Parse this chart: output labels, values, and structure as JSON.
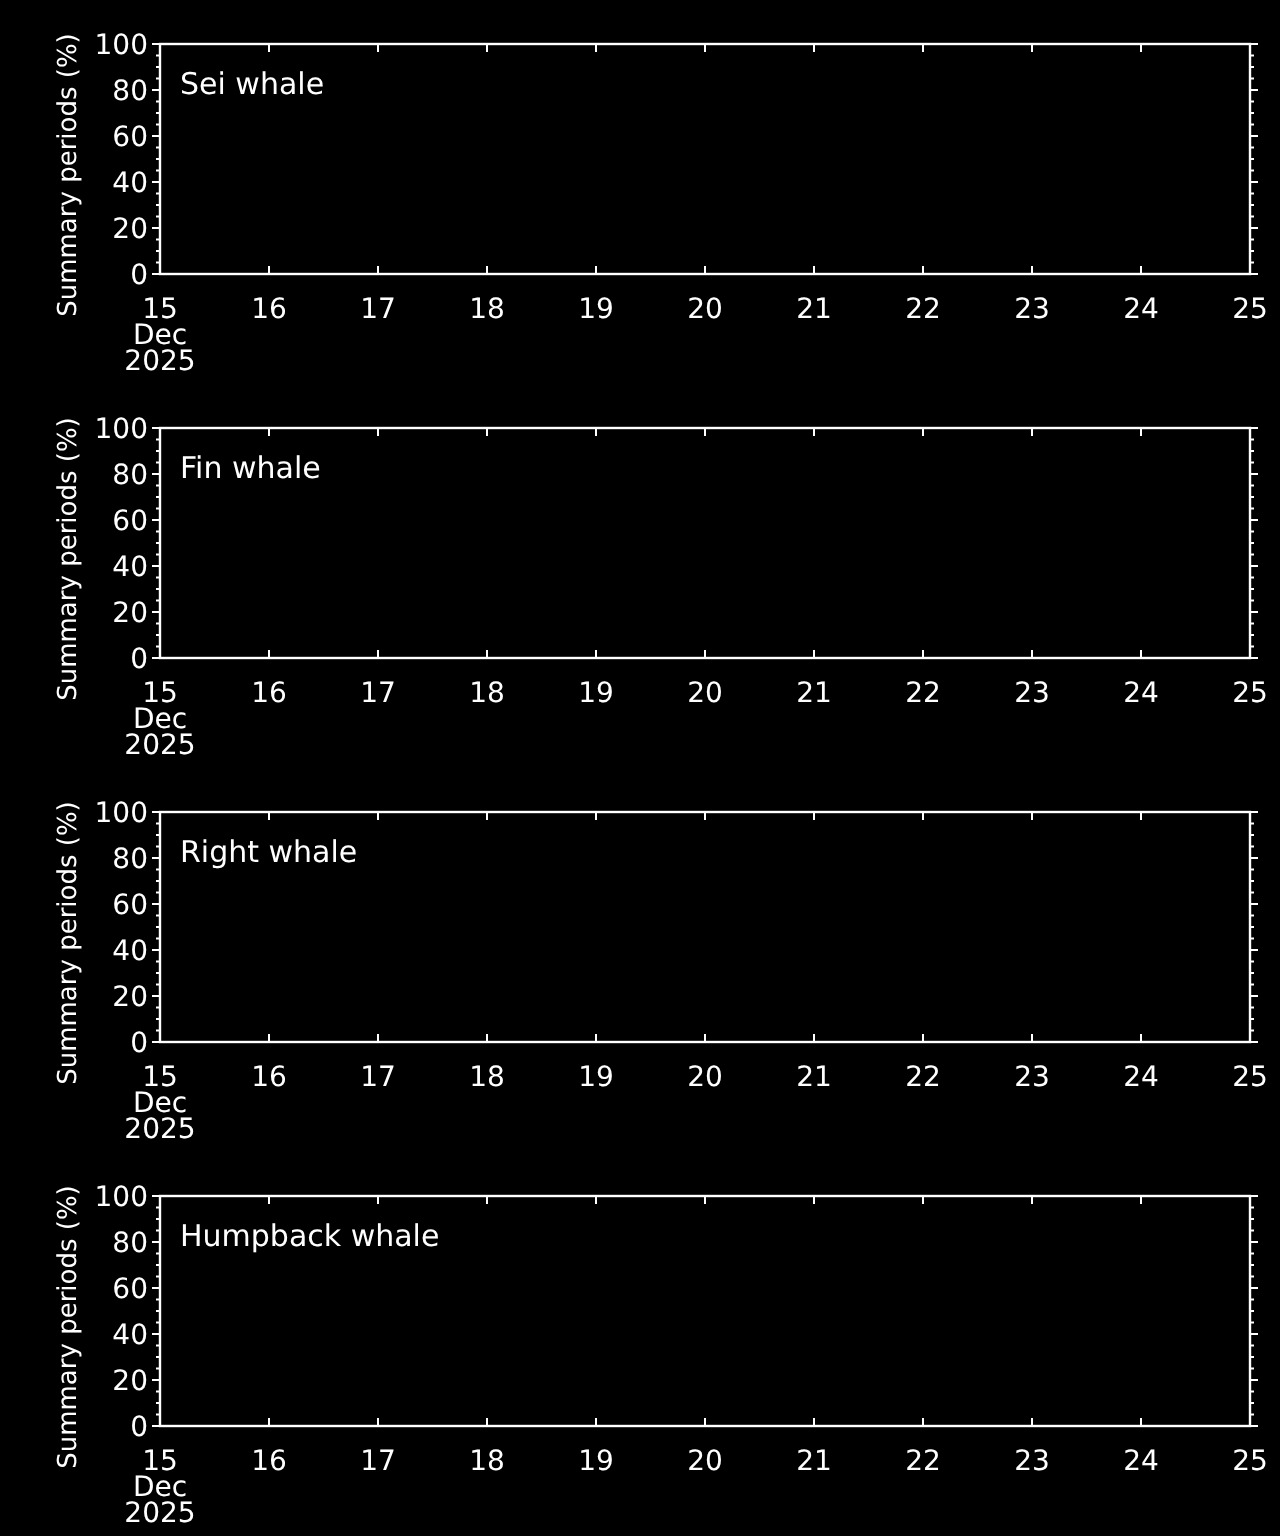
{
  "chart_data": [
    {
      "type": "bar",
      "title": "Sei whale",
      "ylabel": "Summary periods (%)",
      "xlim": [
        "2025-12-15",
        "2025-12-25"
      ],
      "xticks": [
        {
          "value": "2025-12-15",
          "label": "15\nDec\n2025"
        },
        {
          "value": "2025-12-16",
          "label": "16"
        },
        {
          "value": "2025-12-17",
          "label": "17"
        },
        {
          "value": "2025-12-18",
          "label": "18"
        },
        {
          "value": "2025-12-19",
          "label": "19"
        },
        {
          "value": "2025-12-20",
          "label": "20"
        },
        {
          "value": "2025-12-21",
          "label": "21"
        },
        {
          "value": "2025-12-22",
          "label": "22"
        },
        {
          "value": "2025-12-23",
          "label": "23"
        },
        {
          "value": "2025-12-24",
          "label": "24"
        },
        {
          "value": "2025-12-25",
          "label": "25"
        }
      ],
      "ylim": [
        0,
        100
      ],
      "yticks": [
        0,
        20,
        40,
        60,
        80,
        100
      ]
    },
    {
      "type": "bar",
      "title": "Fin whale",
      "ylabel": "Summary periods (%)",
      "xlim": [
        "2025-12-15",
        "2025-12-25"
      ],
      "xticks": [
        {
          "value": "2025-12-15",
          "label": "15\nDec\n2025"
        },
        {
          "value": "2025-12-16",
          "label": "16"
        },
        {
          "value": "2025-12-17",
          "label": "17"
        },
        {
          "value": "2025-12-18",
          "label": "18"
        },
        {
          "value": "2025-12-19",
          "label": "19"
        },
        {
          "value": "2025-12-20",
          "label": "20"
        },
        {
          "value": "2025-12-21",
          "label": "21"
        },
        {
          "value": "2025-12-22",
          "label": "22"
        },
        {
          "value": "2025-12-23",
          "label": "23"
        },
        {
          "value": "2025-12-24",
          "label": "24"
        },
        {
          "value": "2025-12-25",
          "label": "25"
        }
      ],
      "ylim": [
        0,
        100
      ],
      "yticks": [
        0,
        20,
        40,
        60,
        80,
        100
      ]
    },
    {
      "type": "bar",
      "title": "Right whale",
      "ylabel": "Summary periods (%)",
      "xlim": [
        "2025-12-15",
        "2025-12-25"
      ],
      "xticks": [
        {
          "value": "2025-12-15",
          "label": "15\nDec\n2025"
        },
        {
          "value": "2025-12-16",
          "label": "16"
        },
        {
          "value": "2025-12-17",
          "label": "17"
        },
        {
          "value": "2025-12-18",
          "label": "18"
        },
        {
          "value": "2025-12-19",
          "label": "19"
        },
        {
          "value": "2025-12-20",
          "label": "20"
        },
        {
          "value": "2025-12-21",
          "label": "21"
        },
        {
          "value": "2025-12-22",
          "label": "22"
        },
        {
          "value": "2025-12-23",
          "label": "23"
        },
        {
          "value": "2025-12-24",
          "label": "24"
        },
        {
          "value": "2025-12-25",
          "label": "25"
        }
      ],
      "ylim": [
        0,
        100
      ],
      "yticks": [
        0,
        20,
        40,
        60,
        80,
        100
      ]
    },
    {
      "type": "bar",
      "title": "Humpback whale",
      "ylabel": "Summary periods (%)",
      "xlim": [
        "2025-12-15",
        "2025-12-25"
      ],
      "xticks": [
        {
          "value": "2025-12-15",
          "label": "15\nDec\n2025"
        },
        {
          "value": "2025-12-16",
          "label": "16"
        },
        {
          "value": "2025-12-17",
          "label": "17"
        },
        {
          "value": "2025-12-18",
          "label": "18"
        },
        {
          "value": "2025-12-19",
          "label": "19"
        },
        {
          "value": "2025-12-20",
          "label": "20"
        },
        {
          "value": "2025-12-21",
          "label": "21"
        },
        {
          "value": "2025-12-22",
          "label": "22"
        },
        {
          "value": "2025-12-23",
          "label": "23"
        },
        {
          "value": "2025-12-24",
          "label": "24"
        },
        {
          "value": "2025-12-25",
          "label": "25"
        }
      ],
      "ylim": [
        0,
        100
      ],
      "yticks": [
        0,
        20,
        40,
        60,
        80,
        100
      ]
    }
  ]
}
